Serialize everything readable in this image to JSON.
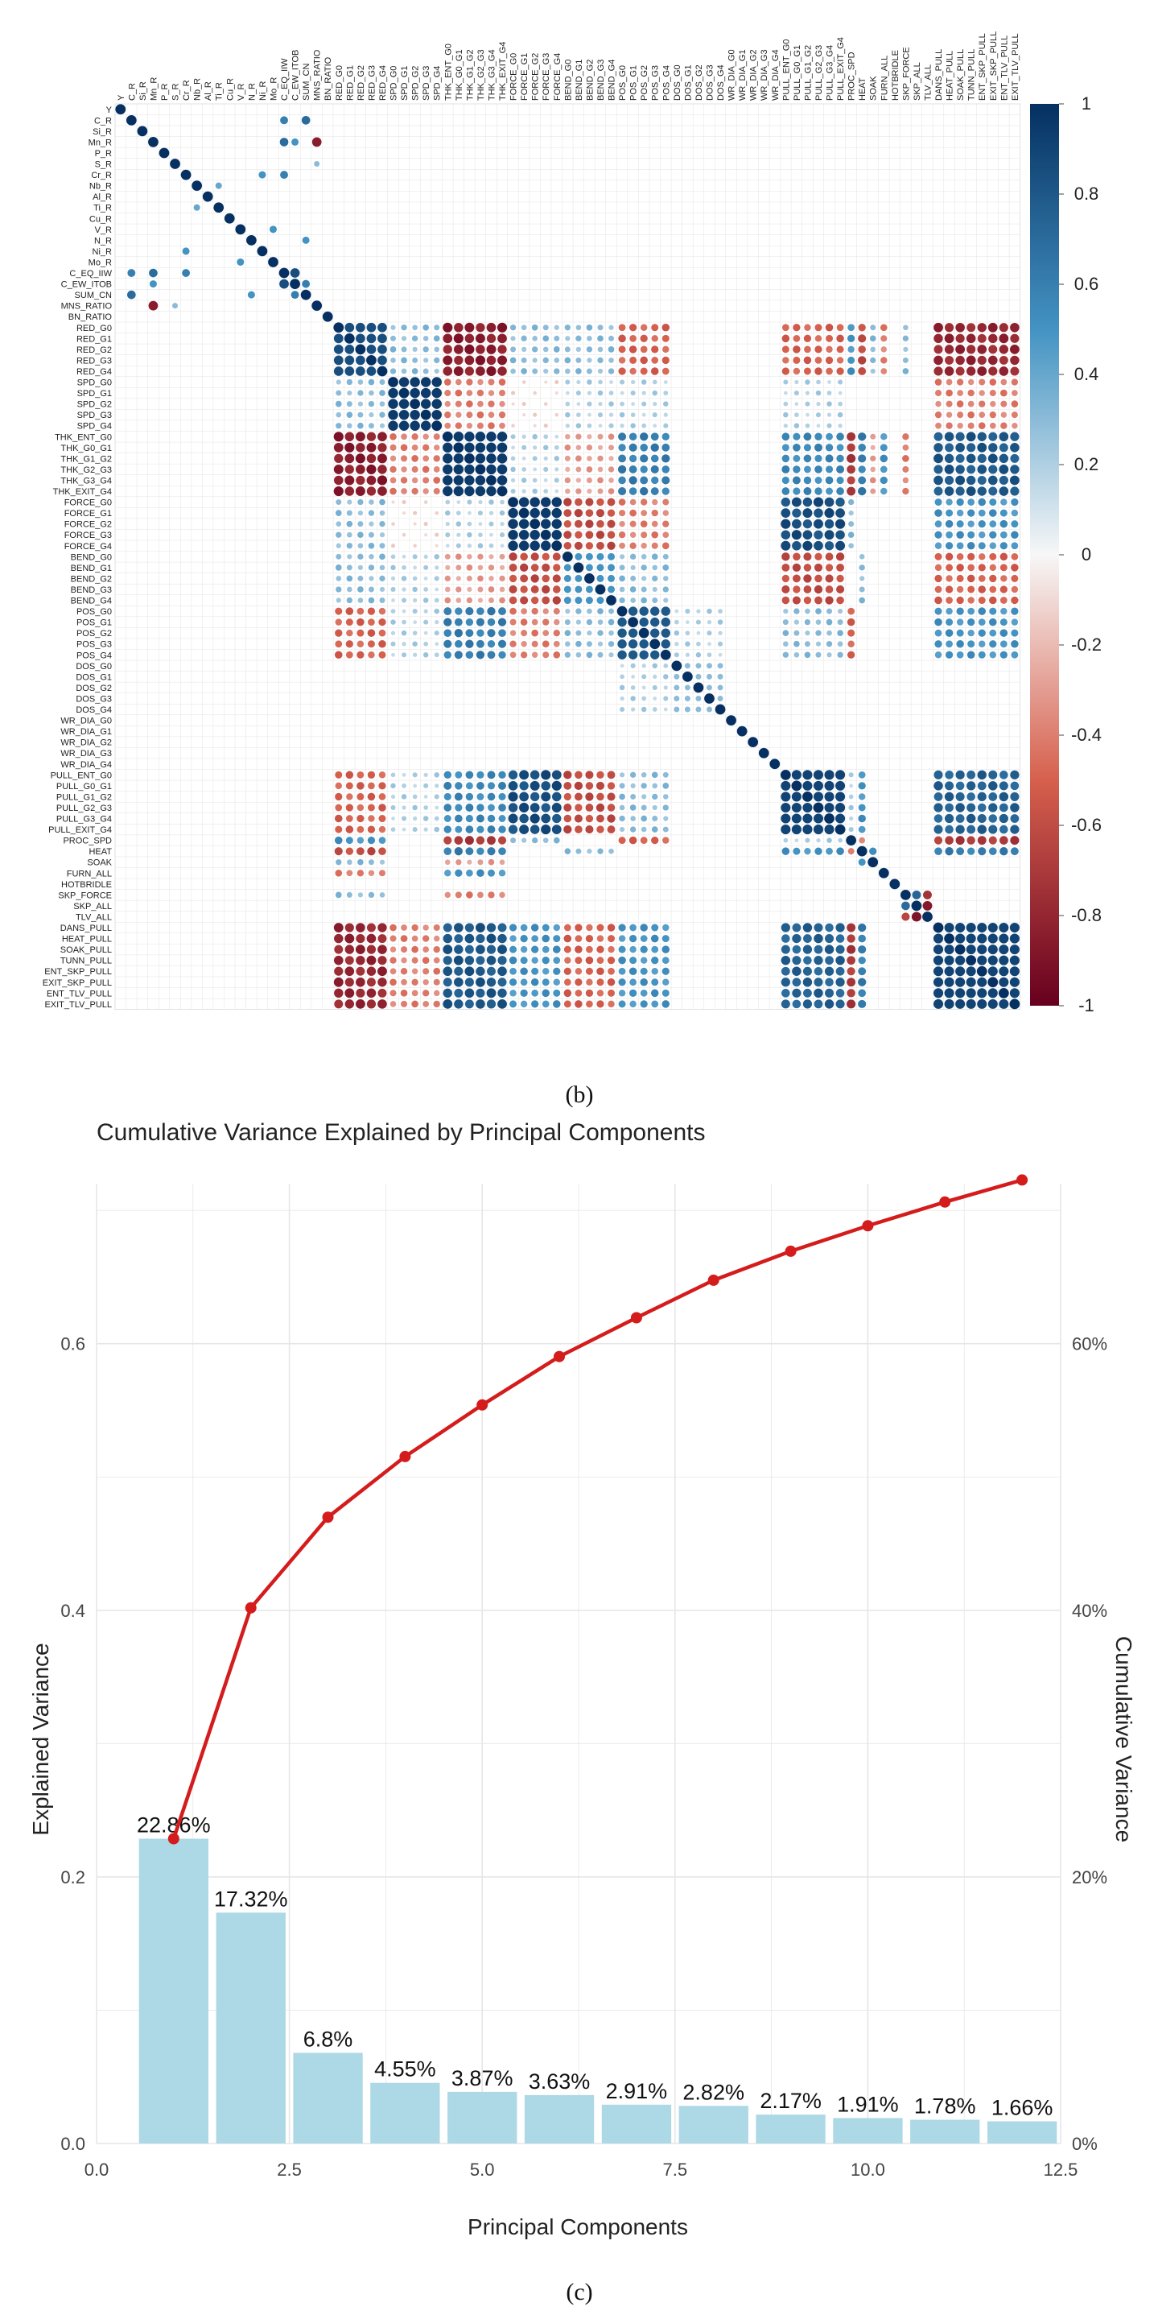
{
  "panel_b_label": "(b)",
  "panel_c_label": "(c)",
  "colors": {
    "bar": "#add8e6",
    "line": "#d41c1c",
    "neg_strong": "#67001f",
    "neg_mid": "#d6604d",
    "neutral": "#f7f7f7",
    "pos_mid": "#4393c3",
    "pos_strong": "#053061",
    "grid": "#e6e6e6"
  },
  "chart_data": [
    {
      "type": "heatmap",
      "title": "",
      "variables": [
        "Y",
        "C_R",
        "Si_R",
        "Mn_R",
        "P_R",
        "S_R",
        "Cr_R",
        "Nb_R",
        "Al_R",
        "Ti_R",
        "Cu_R",
        "V_R",
        "N_R",
        "Ni_R",
        "Mo_R",
        "C_EQ_IIW",
        "C_EW_ITOB",
        "SUM_CN",
        "MNS_RATIO",
        "BN_RATIO",
        "RED_G0",
        "RED_G1",
        "RED_G2",
        "RED_G3",
        "RED_G4",
        "SPD_G0",
        "SPD_G1",
        "SPD_G2",
        "SPD_G3",
        "SPD_G4",
        "THK_ENT_G0",
        "THK_G0_G1",
        "THK_G1_G2",
        "THK_G2_G3",
        "THK_G3_G4",
        "THK_EXIT_G4",
        "FORCE_G0",
        "FORCE_G1",
        "FORCE_G2",
        "FORCE_G3",
        "FORCE_G4",
        "BEND_G0",
        "BEND_G1",
        "BEND_G2",
        "BEND_G3",
        "BEND_G4",
        "POS_G0",
        "POS_G1",
        "POS_G2",
        "POS_G3",
        "POS_G4",
        "DOS_G0",
        "DOS_G1",
        "DOS_G2",
        "DOS_G3",
        "DOS_G4",
        "WR_DIA_G0",
        "WR_DIA_G1",
        "WR_DIA_G2",
        "WR_DIA_G3",
        "WR_DIA_G4",
        "PULL_ENT_G0",
        "PULL_G0_G1",
        "PULL_G1_G2",
        "PULL_G2_G3",
        "PULL_G3_G4",
        "PULL_EXIT_G4",
        "PROC_SPD",
        "HEAT",
        "SOAK",
        "FURN_ALL",
        "HOTBRIDLE",
        "SKP_FORCE",
        "SKP_ALL",
        "TLV_ALL",
        "DANS_PULL",
        "HEAT_PULL",
        "SOAK_PULL",
        "TUNN_PULL",
        "ENT_SKP_PULL",
        "EXIT_SKP_PULL",
        "ENT_TLV_PULL",
        "EXIT_TLV_PULL"
      ],
      "groups": {
        "RED": [
          20,
          24
        ],
        "SPD": [
          25,
          29
        ],
        "THK": [
          30,
          35
        ],
        "FORCE": [
          36,
          40
        ],
        "BEND": [
          41,
          45
        ],
        "POS": [
          46,
          50
        ],
        "DOS": [
          51,
          55
        ],
        "WR": [
          56,
          60
        ],
        "PULL": [
          61,
          66
        ],
        "PROC": [
          67,
          67
        ],
        "HEAT": [
          68,
          68
        ],
        "SOAK": [
          69,
          69
        ],
        "FURN": [
          70,
          70
        ],
        "HOTB": [
          71,
          71
        ],
        "SKPF": [
          72,
          72
        ],
        "SKP": [
          73,
          73
        ],
        "TLV": [
          74,
          74
        ],
        "DPULL": [
          75,
          82
        ]
      },
      "group_correlations": {
        "RED-RED": 0.85,
        "RED-SPD": 0.3,
        "RED-THK": -0.85,
        "RED-FORCE": 0.3,
        "RED-BEND": 0.3,
        "RED-POS": -0.5,
        "RED-PULL": -0.5,
        "RED-PROC": 0.5,
        "RED-HEAT": -0.6,
        "RED-SOAK": 0.3,
        "RED-FURN": -0.4,
        "RED-SKPF": 0.3,
        "RED-DPULL": -0.8,
        "SPD-SPD": 0.95,
        "SPD-THK": -0.4,
        "SPD-FORCE": -0.1,
        "SPD-BEND": 0.2,
        "SPD-POS": 0.2,
        "SPD-PULL": 0.2,
        "SPD-DPULL": -0.4,
        "THK-THK": 0.95,
        "THK-FORCE": 0.2,
        "THK-BEND": -0.3,
        "THK-POS": 0.6,
        "THK-PULL": 0.55,
        "THK-PROC": -0.7,
        "THK-HEAT": 0.6,
        "THK-SOAK": -0.3,
        "THK-FURN": 0.5,
        "THK-SKPF": -0.4,
        "THK-DPULL": 0.8,
        "FORCE-FORCE": 0.95,
        "FORCE-BEND": -0.6,
        "FORCE-POS": -0.4,
        "FORCE-PULL": 0.85,
        "FORCE-DPULL": 0.5,
        "FORCE-PROC": 0.3,
        "BEND-BEND": 0.5,
        "BEND-POS": 0.3,
        "BEND-PULL": -0.6,
        "BEND-DPULL": -0.5,
        "BEND-HEAT": 0.3,
        "POS-POS": 0.8,
        "POS-DOS": 0.2,
        "POS-PULL": 0.3,
        "POS-DPULL": 0.5,
        "POS-PROC": -0.5,
        "DOS-DOS": 0.3,
        "PULL-PULL": 0.9,
        "PULL-PROC": 0.2,
        "PULL-HEAT": 0.5,
        "PULL-DPULL": 0.75,
        "PROC-HEAT": -0.4,
        "PROC-DPULL": -0.7,
        "HEAT-SOAK": 0.5,
        "HEAT-DPULL": 0.6,
        "SKP-TLV": -0.9,
        "SKPF-SKP": 0.7,
        "SKPF-TLV": -0.7,
        "DPULL-DPULL": 0.9
      },
      "special_pairs": [
        {
          "a": "Mn_R",
          "b": "MNS_RATIO",
          "value": -0.85
        },
        {
          "a": "C_R",
          "b": "C_EQ_IIW",
          "value": 0.6
        },
        {
          "a": "C_R",
          "b": "SUM_CN",
          "value": 0.7
        },
        {
          "a": "Mn_R",
          "b": "C_EQ_IIW",
          "value": 0.7
        },
        {
          "a": "Mn_R",
          "b": "C_EW_ITOB",
          "value": 0.5
        },
        {
          "a": "Cr_R",
          "b": "C_EQ_IIW",
          "value": 0.6
        },
        {
          "a": "Cr_R",
          "b": "Ni_R",
          "value": 0.5
        },
        {
          "a": "Nb_R",
          "b": "Ti_R",
          "value": 0.4
        },
        {
          "a": "V_R",
          "b": "Mo_R",
          "value": 0.5
        },
        {
          "a": "N_R",
          "b": "SUM_CN",
          "value": 0.5
        },
        {
          "a": "C_EQ_IIW",
          "b": "C_EW_ITOB",
          "value": 0.85
        },
        {
          "a": "C_EW_ITOB",
          "b": "SUM_CN",
          "value": 0.6
        },
        {
          "a": "S_R",
          "b": "MNS_RATIO",
          "value": 0.3
        }
      ],
      "colorbar": {
        "ticks": [
          "1",
          "0.8",
          "0.6",
          "0.4",
          "0.2",
          "0",
          "-0.2",
          "-0.4",
          "-0.6",
          "-0.8",
          "-1"
        ],
        "range": [
          -1,
          1
        ]
      }
    },
    {
      "type": "bar",
      "title": "Cumulative Variance Explained by Principal Components",
      "xlabel": "Principal Components",
      "ylabel": "Explained Variance",
      "y2label": "Cumulative Variance",
      "x": [
        1,
        2,
        3,
        4,
        5,
        6,
        7,
        8,
        9,
        10,
        11,
        12
      ],
      "values": [
        0.2286,
        0.1732,
        0.068,
        0.0455,
        0.0387,
        0.0363,
        0.0291,
        0.0282,
        0.0217,
        0.0191,
        0.0178,
        0.0166
      ],
      "labels": [
        "22.86%",
        "17.32%",
        "6.8%",
        "4.55%",
        "3.87%",
        "3.63%",
        "2.91%",
        "2.82%",
        "2.17%",
        "1.91%",
        "1.78%",
        "1.66%"
      ],
      "cumulative": [
        0.2286,
        0.4018,
        0.4698,
        0.5153,
        0.554,
        0.5903,
        0.6194,
        0.6476,
        0.6693,
        0.6884,
        0.7062,
        0.7228
      ],
      "xlim": [
        0,
        12.5
      ],
      "ylim": [
        0,
        0.72
      ],
      "xticks": [
        0,
        2.5,
        5,
        7.5,
        10,
        12.5
      ],
      "xtick_labels": [
        "0.0",
        "2.5",
        "5.0",
        "7.5",
        "10.0",
        "12.5"
      ],
      "yticks": [
        0,
        0.2,
        0.4,
        0.6
      ],
      "ytick_labels": [
        "0.0",
        "0.2",
        "0.4",
        "0.6"
      ],
      "y2ticks": [
        0,
        0.2,
        0.4,
        0.6
      ],
      "y2tick_labels": [
        "0%",
        "20%",
        "40%",
        "60%"
      ],
      "grid": true
    }
  ]
}
